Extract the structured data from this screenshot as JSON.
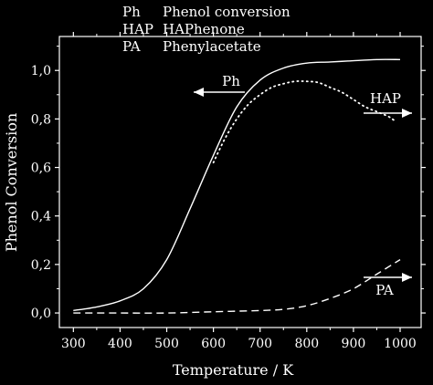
{
  "header": {
    "rows": [
      {
        "abbr": "Ph",
        "name": "Phenol conversion"
      },
      {
        "abbr": "HAP",
        "name": "HAPhenone"
      },
      {
        "abbr": "PA",
        "name": "Phenylacetate"
      }
    ]
  },
  "chart_data": {
    "type": "line",
    "title": "",
    "xlabel": "Temperature / K",
    "ylabel": "Phenol Conversion",
    "xlim": [
      270,
      1045
    ],
    "ylim": [
      -0.06,
      1.14
    ],
    "xticks": [
      300,
      400,
      500,
      600,
      700,
      800,
      900,
      1000
    ],
    "yticks": [
      0.0,
      0.2,
      0.4,
      0.6,
      0.8,
      1.0
    ],
    "ytick_labels": [
      "0,0",
      "0,2",
      "0,4",
      "0,6",
      "0,8",
      "1,0"
    ],
    "colors": {
      "background": "#000000",
      "foreground": "#ffffff"
    },
    "series": [
      {
        "name": "Ph",
        "style": "solid",
        "arrow": "left",
        "x": [
          300,
          350,
          400,
          450,
          500,
          550,
          600,
          650,
          700,
          750,
          800,
          850,
          900,
          950,
          1000
        ],
        "y": [
          0.01,
          0.025,
          0.05,
          0.1,
          0.22,
          0.43,
          0.65,
          0.85,
          0.96,
          1.01,
          1.03,
          1.035,
          1.04,
          1.045,
          1.045
        ]
      },
      {
        "name": "HAP",
        "style": "dotted",
        "arrow": "right",
        "x": [
          600,
          625,
          650,
          675,
          700,
          725,
          750,
          775,
          800,
          825,
          850,
          875,
          900,
          925,
          950,
          975,
          990
        ],
        "y": [
          0.62,
          0.72,
          0.8,
          0.86,
          0.9,
          0.93,
          0.945,
          0.955,
          0.955,
          0.95,
          0.93,
          0.91,
          0.88,
          0.85,
          0.83,
          0.81,
          0.79
        ]
      },
      {
        "name": "PA",
        "style": "dashed",
        "arrow": "right",
        "x": [
          300,
          400,
          500,
          600,
          700,
          750,
          800,
          850,
          900,
          950,
          1000
        ],
        "y": [
          0.0,
          0.0,
          0.0,
          0.005,
          0.01,
          0.015,
          0.03,
          0.06,
          0.1,
          0.16,
          0.22
        ]
      }
    ]
  }
}
